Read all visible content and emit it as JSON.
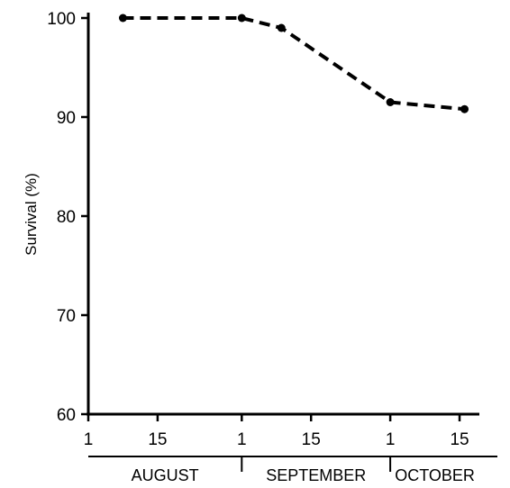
{
  "chart_data": {
    "type": "line",
    "ylabel": "Survival (%)",
    "ylim": [
      60,
      100
    ],
    "y_ticks": [
      "60",
      "70",
      "80",
      "90",
      "100"
    ],
    "x_ticks": [
      {
        "day": 1,
        "label": "1"
      },
      {
        "day": 15,
        "label": "15"
      },
      {
        "day": 32,
        "label": "1"
      },
      {
        "day": 46,
        "label": "15"
      },
      {
        "day": 62,
        "label": "1"
      },
      {
        "day": 76,
        "label": "15"
      }
    ],
    "months": [
      {
        "label": "AUGUST",
        "start": 1,
        "end": 32
      },
      {
        "label": "SEPTEMBER",
        "start": 32,
        "end": 62
      },
      {
        "label": "OCTOBER",
        "start": 62,
        "end": 80
      }
    ],
    "xlim": [
      1,
      80
    ],
    "series": [
      {
        "x": [
          8,
          32,
          40,
          62,
          77
        ],
        "y": [
          100,
          100,
          99.0,
          91.5,
          90.8
        ],
        "line_style": "dashed"
      }
    ]
  }
}
